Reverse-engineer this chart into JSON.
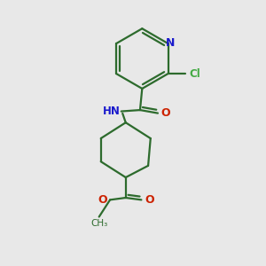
{
  "background_color": "#e8e8e8",
  "bond_color": "#2d6b2d",
  "N_color": "#1a1acc",
  "O_color": "#cc2200",
  "Cl_color": "#44aa44",
  "line_width": 1.6,
  "figsize": [
    3.0,
    3.0
  ],
  "dpi": 100,
  "xlim": [
    0,
    10
  ],
  "ylim": [
    0,
    10
  ]
}
